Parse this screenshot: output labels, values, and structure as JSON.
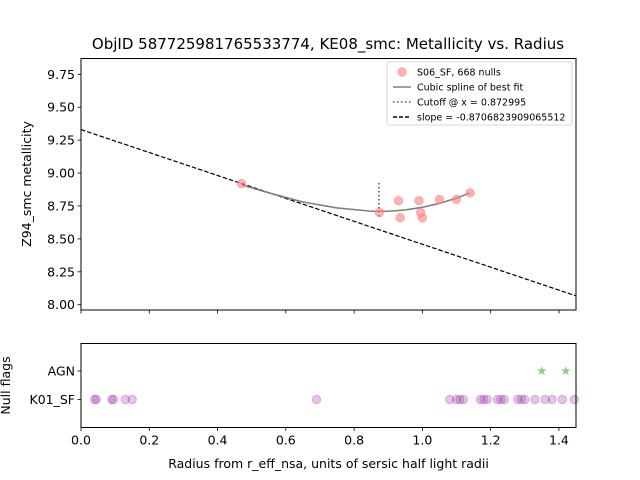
{
  "chart_data": [
    {
      "type": "scatter",
      "title": "ObjID 587725981765533774, KE08_smc: Metallicity vs. Radius",
      "xlabel": "",
      "ylabel": "Z94_smc metallicity",
      "xlim": [
        0.0,
        1.45
      ],
      "ylim": [
        7.96,
        9.87
      ],
      "xticks": [
        0.0,
        0.2,
        0.4,
        0.6,
        0.8,
        1.0,
        1.2,
        1.4
      ],
      "yticks": [
        8.0,
        8.25,
        8.5,
        8.75,
        9.0,
        9.25,
        9.5,
        9.75
      ],
      "ytick_labels": [
        "8.00",
        "8.25",
        "8.50",
        "8.75",
        "9.00",
        "9.25",
        "9.50",
        "9.75"
      ],
      "legend_position": "top-right",
      "legend": [
        {
          "label": "S06_SF, 668 nulls",
          "kind": "marker",
          "color": "#ff8080"
        },
        {
          "label": "Cubic spline of best fit",
          "kind": "solid-line",
          "color": "#808080"
        },
        {
          "label": "Cutoff @ x = 0.872995",
          "kind": "dotted-line",
          "color": "#555555"
        },
        {
          "label": "slope = -0.8706823909065512",
          "kind": "dashed-line",
          "color": "#000000"
        }
      ],
      "points": {
        "x": [
          0.47,
          0.874,
          0.93,
          0.935,
          0.99,
          0.995,
          1.0,
          1.05,
          1.1,
          1.14
        ],
        "y": [
          8.92,
          8.7,
          8.79,
          8.66,
          8.79,
          8.7,
          8.66,
          8.8,
          8.8,
          8.85
        ],
        "color": "#ff8080"
      },
      "spline": {
        "x": [
          0.47,
          0.55,
          0.65,
          0.75,
          0.85,
          0.9,
          0.95,
          1.0,
          1.05,
          1.1,
          1.14
        ],
        "y": [
          8.91,
          8.85,
          8.78,
          8.735,
          8.71,
          8.71,
          8.72,
          8.74,
          8.77,
          8.81,
          8.85
        ],
        "color": "#808080"
      },
      "cutoff": {
        "x": 0.872995,
        "y_from": 8.67,
        "y_to": 8.93
      },
      "slope_line": {
        "slope": -0.8706823909065512,
        "intercept": 9.33,
        "color": "#000000"
      }
    },
    {
      "type": "scatter",
      "title": "",
      "xlabel": "Radius from r_eff_nsa, units of sersic half light radii",
      "ylabel": "Null flags",
      "xlim": [
        0.0,
        1.45
      ],
      "xticks": [
        0.0,
        0.2,
        0.4,
        0.6,
        0.8,
        1.0,
        1.2,
        1.4
      ],
      "xtick_labels": [
        "0.0",
        "0.2",
        "0.4",
        "0.6",
        "0.8",
        "1.0",
        "1.2",
        "1.4"
      ],
      "categories": [
        "K01_SF",
        "AGN"
      ],
      "series": [
        {
          "name": "K01_SF",
          "marker": "circle",
          "color": "#9b30a8",
          "x": [
            0.04,
            0.045,
            0.09,
            0.095,
            0.13,
            0.15,
            0.69,
            1.08,
            1.1,
            1.11,
            1.12,
            1.17,
            1.18,
            1.19,
            1.22,
            1.23,
            1.24,
            1.28,
            1.29,
            1.3,
            1.33,
            1.36,
            1.38,
            1.41,
            1.445
          ]
        },
        {
          "name": "AGN",
          "marker": "star",
          "color": "#4caf50",
          "x": [
            1.35,
            1.42
          ]
        }
      ]
    }
  ]
}
